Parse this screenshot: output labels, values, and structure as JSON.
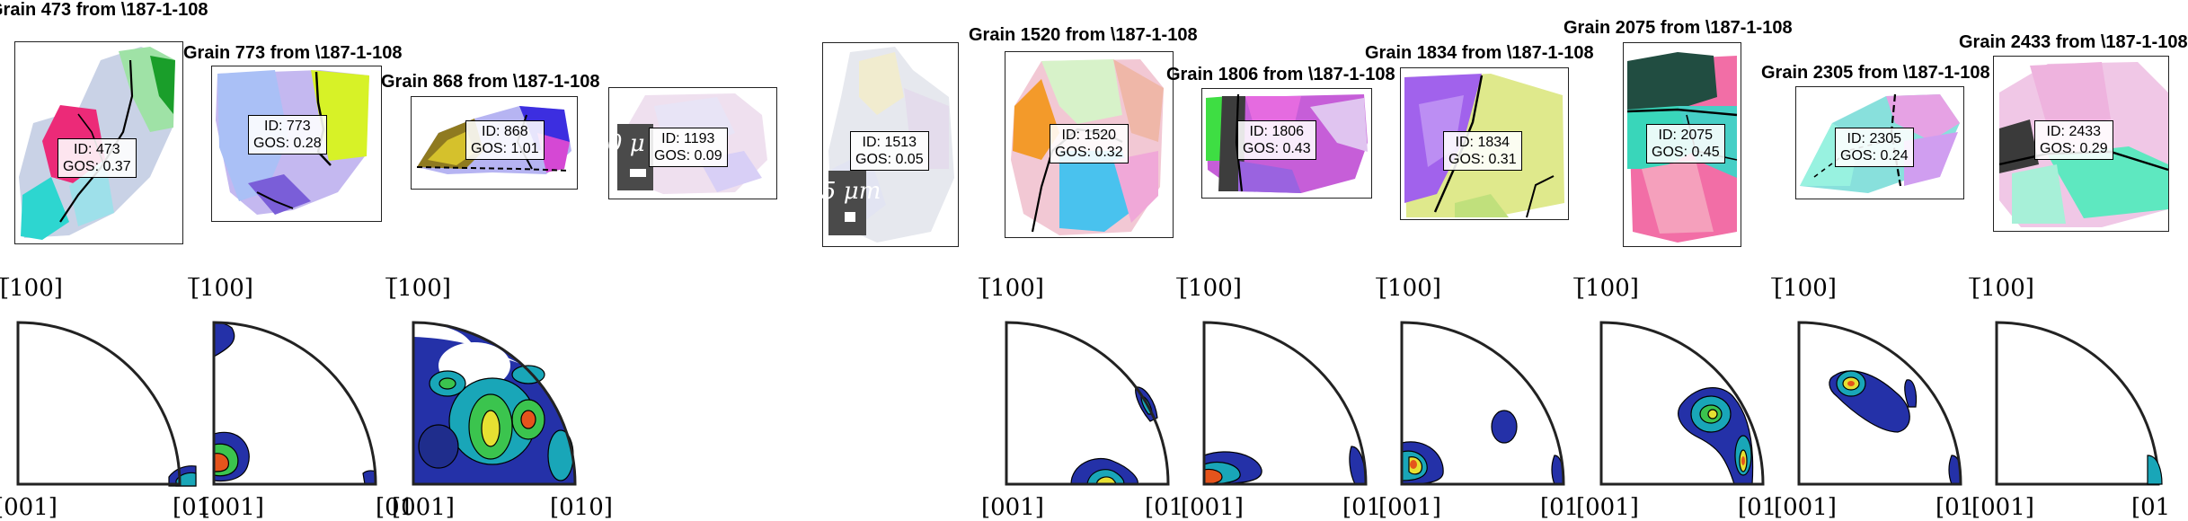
{
  "colors": {
    "contour_low": "#2431a8",
    "contour_mid": "#19a6b8",
    "contour_green": "#3bc44e",
    "contour_yellow": "#e6e032",
    "contour_high": "#e5541c",
    "boundary": "#000000"
  },
  "grains": [
    {
      "title": "Grain 473 from \\187-1-108",
      "id_label": "ID: 473",
      "gos_label": "GOS: 0.37"
    },
    {
      "title": "Grain 773 from \\187-1-108",
      "id_label": "ID: 773",
      "gos_label": "GOS: 0.28"
    },
    {
      "title": "Grain 868 from \\187-1-108",
      "id_label": "ID: 868",
      "gos_label": "GOS: 1.01"
    },
    {
      "title": "",
      "id_label": "ID: 1193",
      "gos_label": "GOS: 0.09",
      "scale_text": "0  μ"
    },
    {
      "title": "",
      "id_label": "ID: 1513",
      "gos_label": "GOS: 0.05",
      "scale_text": "5 μm"
    },
    {
      "title": "Grain 1520 from \\187-1-108",
      "id_label": "ID: 1520",
      "gos_label": "GOS: 0.32"
    },
    {
      "title": "Grain 1806 from \\187-1-108",
      "id_label": "ID: 1806",
      "gos_label": "GOS: 0.43"
    },
    {
      "title": "Grain 1834 from \\187-1-108",
      "id_label": "ID: 1834",
      "gos_label": "GOS: 0.31"
    },
    {
      "title": "Grain 2075 from \\187-1-108",
      "id_label": "ID: 2075",
      "gos_label": "GOS: 0.45"
    },
    {
      "title": "Grain 2305 from \\187-1-108",
      "id_label": "ID: 2305",
      "gos_label": "GOS: 0.24"
    },
    {
      "title": "Grain 2433 from \\187-1-108",
      "id_label": "ID: 2433",
      "gos_label": "GOS: 0.29"
    }
  ],
  "pole_figures": [
    {
      "top_label": "[̅100]",
      "bottom_left": "[001]",
      "bottom_right": "[01"
    },
    {
      "top_label": "[̅100]",
      "bottom_left": "[001]",
      "bottom_right": "[01"
    },
    {
      "top_label": "[̅100]",
      "bottom_left": "[001]",
      "bottom_right": "[010]"
    },
    {
      "top_label": "[̅100]",
      "bottom_left": "[001]",
      "bottom_right": "[01"
    },
    {
      "top_label": "[̅100]",
      "bottom_left": "[001]",
      "bottom_right": "[01"
    },
    {
      "top_label": "[̅100]",
      "bottom_left": "[001]",
      "bottom_right": "[01"
    },
    {
      "top_label": "[̅100]",
      "bottom_left": "[001]",
      "bottom_right": "[01"
    },
    {
      "top_label": "[̅100]",
      "bottom_left": "[001]",
      "bottom_right": "[01"
    },
    {
      "top_label": "[̅100]",
      "bottom_left": "[001]",
      "bottom_right": "[01"
    }
  ]
}
